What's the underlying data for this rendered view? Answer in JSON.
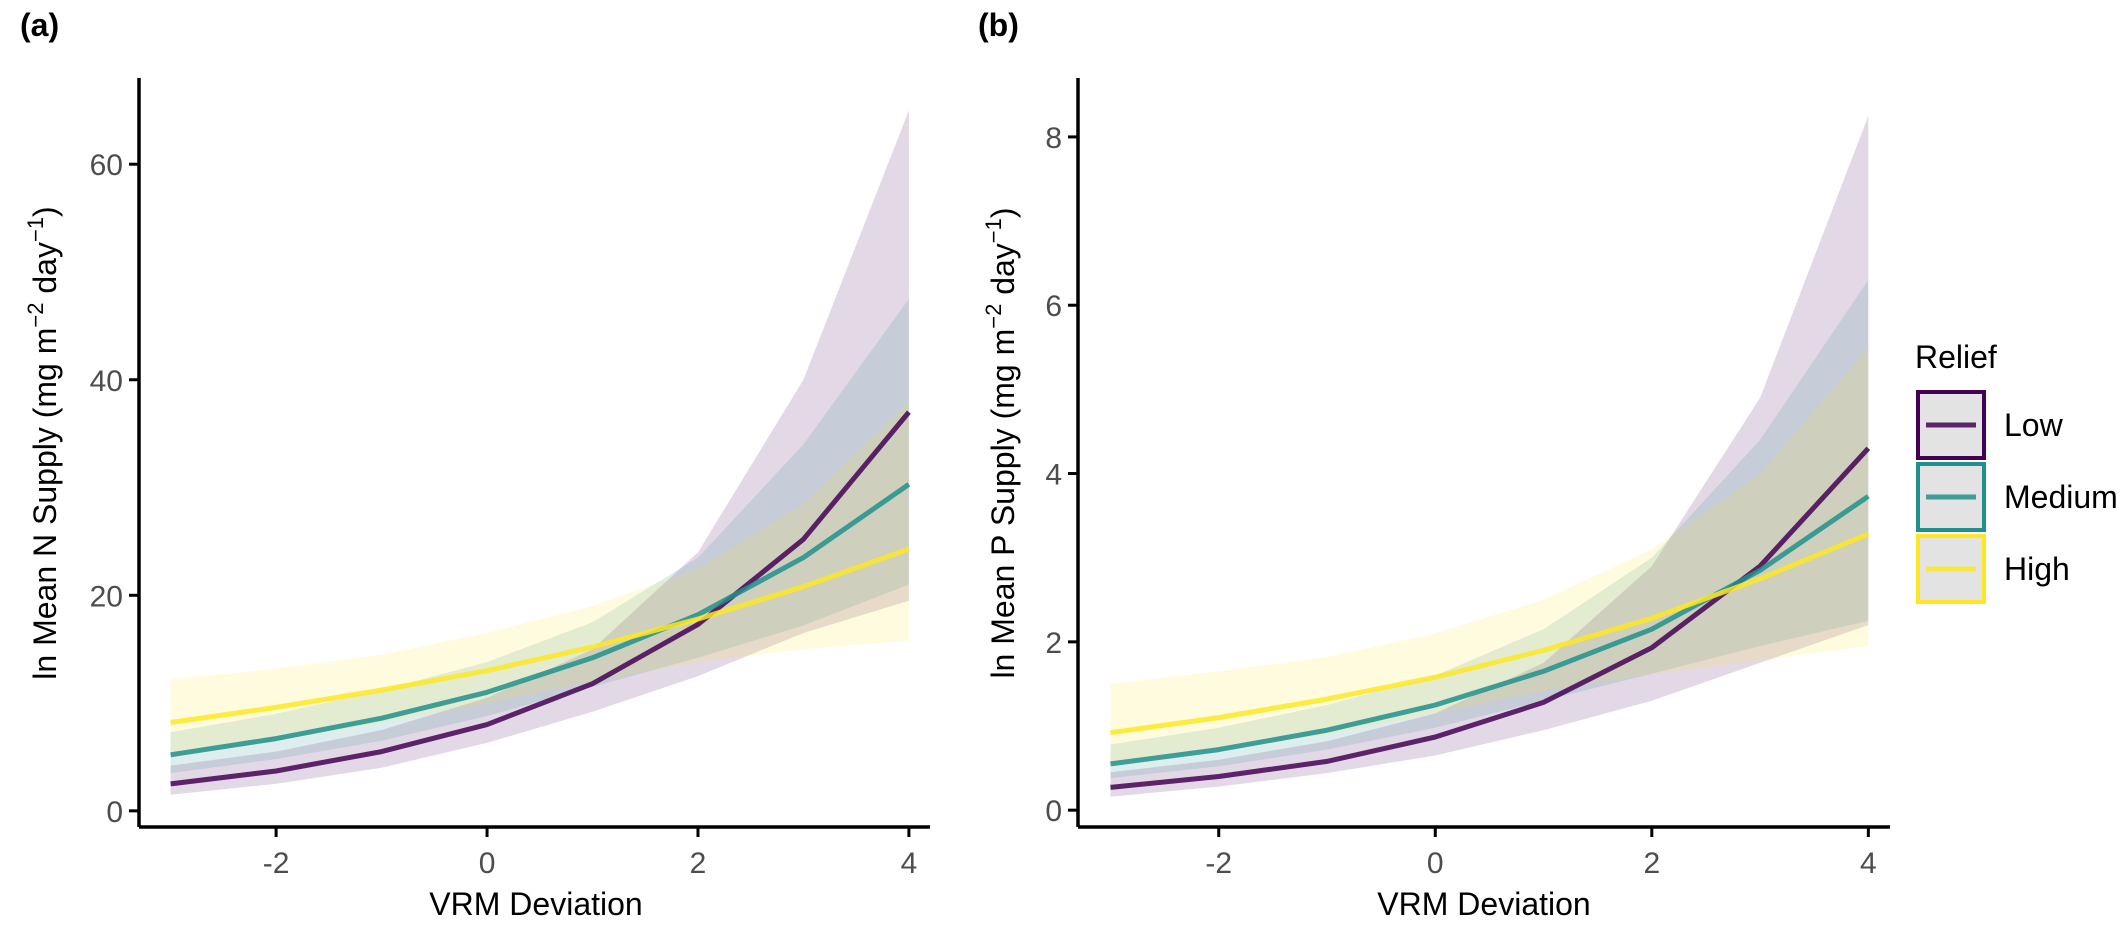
{
  "chart_data": [
    {
      "type": "line",
      "panel_label": "(a)",
      "xlabel": "VRM Deviation",
      "ylabel_prefix": "ln Mean N Supply (mg m",
      "ylabel_sup1": "−2",
      "ylabel_mid": " day",
      "ylabel_sup2": "−1",
      "ylabel_suffix": ")",
      "xlim": [
        -3.3,
        4.2
      ],
      "ylim": [
        -1.5,
        68
      ],
      "xticks": [
        -2,
        0,
        2,
        4
      ],
      "xtick_labels": [
        "-2",
        "0",
        "2",
        "4"
      ],
      "yticks": [
        0,
        20,
        40,
        60
      ],
      "ytick_labels": [
        "0",
        "20",
        "40",
        "60"
      ],
      "x": [
        -3,
        -2,
        -1,
        0,
        1,
        2,
        3,
        4
      ],
      "series": [
        {
          "name": "Low",
          "color": "#440154",
          "values": [
            2.5,
            3.7,
            5.5,
            8.0,
            11.8,
            17.3,
            25.2,
            37.0
          ],
          "lower": [
            1.5,
            2.5,
            4.0,
            6.3,
            9.2,
            12.5,
            16.5,
            19.5
          ],
          "upper": [
            4.2,
            5.5,
            7.5,
            10.5,
            15.0,
            24.0,
            40.0,
            65.0
          ]
        },
        {
          "name": "Medium",
          "color": "#21908C",
          "values": [
            5.2,
            6.7,
            8.6,
            11.0,
            14.2,
            18.2,
            23.5,
            30.3
          ],
          "lower": [
            3.5,
            4.8,
            6.5,
            8.8,
            11.5,
            14.2,
            17.2,
            21.0
          ],
          "upper": [
            7.3,
            9.0,
            11.2,
            13.8,
            17.5,
            23.5,
            34.0,
            47.5
          ]
        },
        {
          "name": "High",
          "color": "#FDE725",
          "values": [
            8.2,
            9.6,
            11.2,
            13.0,
            15.2,
            17.8,
            20.8,
            24.3
          ],
          "lower": [
            5.0,
            6.5,
            8.2,
            10.0,
            12.0,
            13.8,
            15.0,
            15.8
          ],
          "upper": [
            12.2,
            13.2,
            14.5,
            16.5,
            19.0,
            22.5,
            28.5,
            38.0
          ]
        }
      ]
    },
    {
      "type": "line",
      "panel_label": "(b)",
      "xlabel": "VRM Deviation",
      "ylabel_prefix": "ln Mean P Supply (mg m",
      "ylabel_sup1": "−2",
      "ylabel_mid": " day",
      "ylabel_sup2": "−1",
      "ylabel_suffix": ")",
      "xlim": [
        -3.3,
        4.2
      ],
      "ylim": [
        -0.2,
        8.7
      ],
      "xticks": [
        -2,
        0,
        2,
        4
      ],
      "xtick_labels": [
        "-2",
        "0",
        "2",
        "4"
      ],
      "yticks": [
        0,
        2,
        4,
        6,
        8
      ],
      "ytick_labels": [
        "0",
        "2",
        "4",
        "6",
        "8"
      ],
      "x": [
        -3,
        -2,
        -1,
        0,
        1,
        2,
        3,
        4
      ],
      "series": [
        {
          "name": "Low",
          "color": "#440154",
          "values": [
            0.27,
            0.4,
            0.58,
            0.87,
            1.28,
            1.93,
            2.9,
            4.3
          ],
          "lower": [
            0.16,
            0.28,
            0.44,
            0.65,
            0.95,
            1.3,
            1.75,
            2.2
          ],
          "upper": [
            0.45,
            0.6,
            0.82,
            1.15,
            1.75,
            2.9,
            4.9,
            8.25
          ]
        },
        {
          "name": "Medium",
          "color": "#21908C",
          "values": [
            0.55,
            0.72,
            0.95,
            1.25,
            1.65,
            2.15,
            2.85,
            3.73
          ],
          "lower": [
            0.38,
            0.52,
            0.72,
            0.98,
            1.3,
            1.62,
            1.95,
            2.25
          ],
          "upper": [
            0.78,
            0.98,
            1.25,
            1.6,
            2.15,
            3.0,
            4.4,
            6.3
          ]
        },
        {
          "name": "High",
          "color": "#FDE725",
          "values": [
            0.92,
            1.1,
            1.32,
            1.58,
            1.9,
            2.28,
            2.75,
            3.28
          ],
          "lower": [
            0.55,
            0.72,
            0.9,
            1.15,
            1.42,
            1.62,
            1.78,
            1.95
          ],
          "upper": [
            1.5,
            1.65,
            1.82,
            2.1,
            2.5,
            3.1,
            4.0,
            5.5
          ]
        }
      ]
    }
  ],
  "legend": {
    "title": "Relief",
    "position": "right",
    "items": [
      {
        "label": "Low",
        "color": "#440154"
      },
      {
        "label": "Medium",
        "color": "#21908C"
      },
      {
        "label": "High",
        "color": "#FDE725"
      }
    ]
  }
}
